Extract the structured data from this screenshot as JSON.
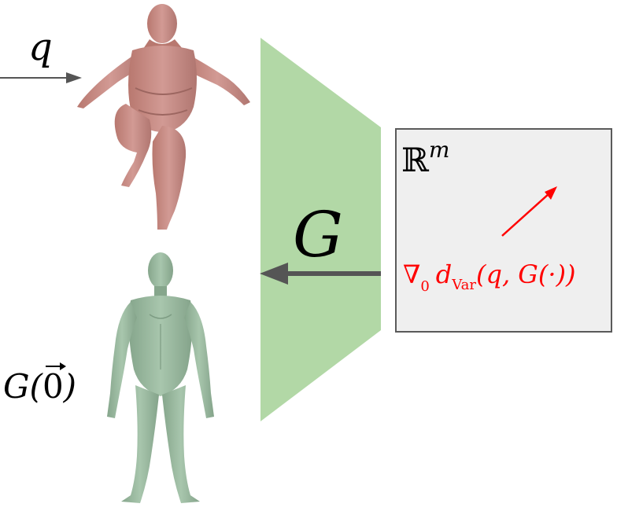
{
  "labels": {
    "q": "q",
    "G": "G",
    "G0": "G(",
    "G0_vec": "0",
    "G0_close": ")",
    "Rm_base": "ℝ",
    "Rm_exp": "m",
    "grad_nabla": "∇",
    "grad_sub": "0",
    "grad_d": "d",
    "grad_sub2": "Var",
    "grad_args": "(q, G(·))"
  },
  "colors": {
    "generator_fill": "#b2d8a6",
    "latent_box_fill": "#efefef",
    "latent_box_stroke": "#5a5a5a",
    "arrow_dark": "#555555",
    "gradient_red": "#ff0000",
    "body_red": "#c98c86",
    "body_red_shade": "#a8706b",
    "body_green": "#98b79d",
    "body_green_shade": "#7d9c83"
  }
}
